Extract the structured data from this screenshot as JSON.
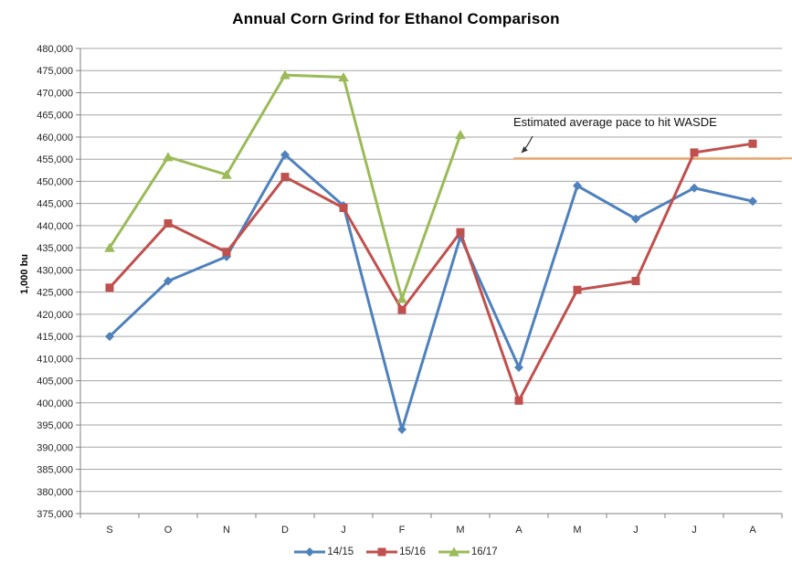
{
  "chart": {
    "title": "Annual Corn Grind for Ethanol Comparison",
    "y_axis_title": "1,000 bu",
    "annotation_text": "Estimated average pace to hit WASDE"
  },
  "chart_data": {
    "type": "line",
    "title": "Annual Corn Grind for Ethanol Comparison",
    "xlabel": "",
    "ylabel": "1,000 bu",
    "ylim": [
      375000,
      480000
    ],
    "y_tick_step": 5000,
    "grid": true,
    "legend_position": "bottom",
    "categories": [
      "S",
      "O",
      "N",
      "D",
      "J",
      "F",
      "M",
      "A",
      "M",
      "J",
      "J",
      "A"
    ],
    "series": [
      {
        "name": "14/15",
        "color": "#4F81BD",
        "marker": "diamond",
        "values": [
          415000,
          427500,
          433000,
          456000,
          444500,
          394000,
          437500,
          408000,
          449000,
          441500,
          448500,
          445500
        ]
      },
      {
        "name": "15/16",
        "color": "#C0504D",
        "marker": "square",
        "values": [
          426000,
          440500,
          434000,
          451000,
          444000,
          421000,
          438500,
          400500,
          425500,
          427500,
          456500,
          458500
        ]
      },
      {
        "name": "16/17",
        "color": "#9BBB59",
        "marker": "triangle",
        "values": [
          435000,
          455500,
          451500,
          474000,
          473500,
          423500,
          460500,
          null,
          null,
          null,
          null,
          null
        ]
      }
    ],
    "reference_line": {
      "label": "Estimated average pace to hit WASDE",
      "value": 455200,
      "color": "#F5A25D",
      "start_category_index": 7,
      "extends_to_right_edge": true
    },
    "axis_color": "#808080",
    "gridline_color": "#A6A6A6",
    "tick_label_color": "#262626",
    "annotation_arrow_color": "#333333"
  }
}
